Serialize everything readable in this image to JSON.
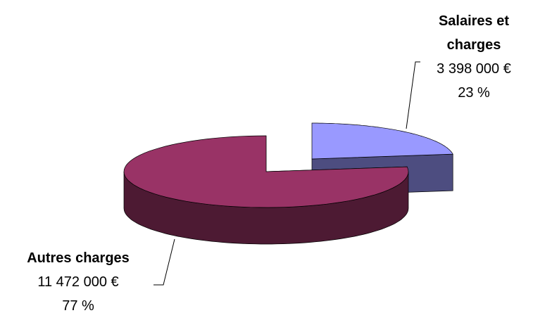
{
  "chart_data": {
    "type": "pie3d",
    "categories": [
      "Salaires et charges",
      "Autres charges"
    ],
    "values": [
      3398000,
      11472000
    ],
    "value_labels": [
      "3 398 000 €",
      "11 472 000 €"
    ],
    "percents": [
      23,
      77
    ],
    "percent_labels": [
      "23 %",
      "77 %"
    ],
    "colors": [
      "#9999ff",
      "#993366"
    ]
  }
}
